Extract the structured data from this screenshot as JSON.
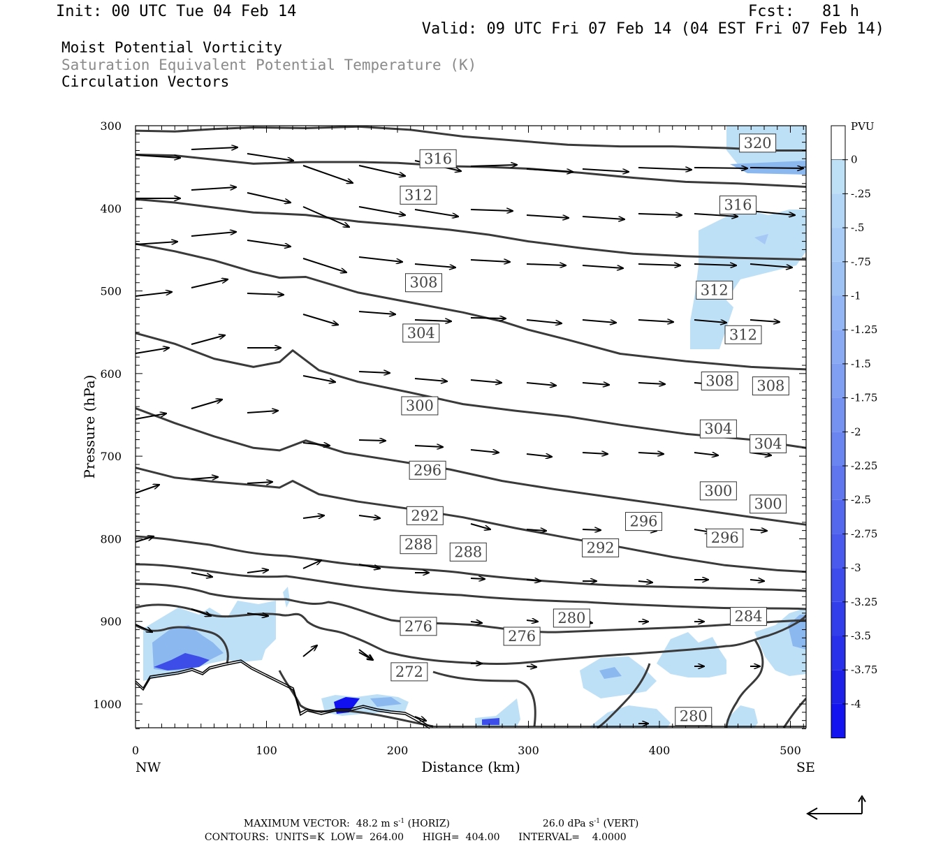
{
  "header": {
    "init": "Init: 00 UTC Tue 04 Feb 14",
    "fcst": "Fcst:   81 h",
    "valid": "Valid: 09 UTC Fri 07 Feb 14 (04 EST Fri 07 Feb 14)"
  },
  "titles": {
    "line1": "Moist Potential Vorticity",
    "line2": "Saturation Equivalent Potential Temperature (K)",
    "line3": "Circulation Vectors"
  },
  "footer": {
    "max_vector_label": "MAXIMUM VECTOR:",
    "horiz": "48.2 m s",
    "horiz_unit": "(HORIZ)",
    "vert": "26.0 dPa s",
    "vert_unit": "(VERT)",
    "contours_units": "CONTOURS:  UNITS=K",
    "low": "LOW=  264.00",
    "high": "HIGH=  404.00",
    "interval": "INTERVAL=    4.0000"
  },
  "colors": {
    "contour": "#3a3a3a",
    "pv_light": "#bde0f7",
    "pv_mid": "#8cb8f0",
    "pv_strong": "#3d4ee8",
    "pv_deep": "#1010f0"
  },
  "chart_data": {
    "type": "cross-section",
    "xlabel": "Distance (km)",
    "ylabel": "Pressure (hPa)",
    "xlim": [
      0,
      512
    ],
    "ylim": [
      1035,
      300
    ],
    "x_ticks": [
      0,
      100,
      200,
      300,
      400,
      500
    ],
    "y_ticks": [
      300,
      400,
      500,
      600,
      700,
      800,
      900,
      1000
    ],
    "endpoints": {
      "left": "NW",
      "right": "SE"
    },
    "colorbar": {
      "unit": "PVU",
      "levels": [
        "0",
        "-.25",
        "-.5",
        "-.75",
        "-1",
        "-1.25",
        "-1.5",
        "-1.75",
        "-2",
        "-2.25",
        "-2.5",
        "-2.75",
        "-3",
        "-3.25",
        "-3.5",
        "-3.75",
        "-4"
      ],
      "colors": [
        "#ffffff",
        "#bde0f7",
        "#b3d6f7",
        "#a9ccf6",
        "#9fc2f5",
        "#95b6f4",
        "#8aaaf3",
        "#809ef2",
        "#7592f1",
        "#6a84f0",
        "#5f76ef",
        "#5468ee",
        "#495aed",
        "#3e4cec",
        "#333eeb",
        "#2830ea",
        "#1e22e9",
        "#1414f0"
      ]
    },
    "contour_labels": [
      {
        "text": "320",
        "x": 475,
        "p": 321
      },
      {
        "text": "316",
        "x": 231,
        "p": 340
      },
      {
        "text": "312",
        "x": 216,
        "p": 384
      },
      {
        "text": "316",
        "x": 460,
        "p": 396
      },
      {
        "text": "308",
        "x": 220,
        "p": 490
      },
      {
        "text": "312",
        "x": 442,
        "p": 499
      },
      {
        "text": "304",
        "x": 218,
        "p": 551
      },
      {
        "text": "312",
        "x": 464,
        "p": 553
      },
      {
        "text": "308",
        "x": 446,
        "p": 609
      },
      {
        "text": "308",
        "x": 485,
        "p": 615
      },
      {
        "text": "300",
        "x": 217,
        "p": 639
      },
      {
        "text": "304",
        "x": 445,
        "p": 667
      },
      {
        "text": "304",
        "x": 483,
        "p": 685
      },
      {
        "text": "296",
        "x": 223,
        "p": 717
      },
      {
        "text": "300",
        "x": 445,
        "p": 742
      },
      {
        "text": "300",
        "x": 483,
        "p": 758
      },
      {
        "text": "292",
        "x": 221,
        "p": 772
      },
      {
        "text": "296",
        "x": 388,
        "p": 779
      },
      {
        "text": "296",
        "x": 450,
        "p": 799
      },
      {
        "text": "288",
        "x": 216,
        "p": 807
      },
      {
        "text": "288",
        "x": 254,
        "p": 816
      },
      {
        "text": "292",
        "x": 355,
        "p": 811
      },
      {
        "text": "280",
        "x": 333,
        "p": 896
      },
      {
        "text": "284",
        "x": 468,
        "p": 894
      },
      {
        "text": "276",
        "x": 216,
        "p": 906
      },
      {
        "text": "276",
        "x": 295,
        "p": 918
      },
      {
        "text": "272",
        "x": 209,
        "p": 961
      },
      {
        "text": "280",
        "x": 426,
        "p": 1015
      }
    ],
    "contour_lines": [
      {
        "x": [
          0,
          30,
          60,
          90,
          130,
          170,
          210,
          250,
          290,
          330,
          370,
          410,
          450,
          490,
          512
        ],
        "p": [
          306,
          307,
          304,
          302,
          303,
          301,
          305,
          313,
          318,
          323,
          325,
          325,
          327,
          330,
          330
        ]
      },
      {
        "x": [
          0,
          30,
          60,
          90,
          130,
          170,
          200,
          240,
          270,
          300,
          340,
          380,
          420,
          460,
          512
        ],
        "p": [
          335,
          336,
          341,
          346,
          344,
          344,
          345,
          349,
          350,
          352,
          357,
          363,
          368,
          370,
          374
        ]
      },
      {
        "x": [
          0,
          30,
          60,
          90,
          130,
          170,
          200,
          240,
          270,
          300,
          340,
          380,
          420,
          460,
          512
        ],
        "p": [
          389,
          393,
          399,
          405,
          408,
          416,
          420,
          426,
          432,
          440,
          448,
          455,
          458,
          460,
          462
        ]
      },
      {
        "x": [
          0,
          30,
          60,
          90,
          110,
          130,
          170,
          210,
          250,
          280,
          300,
          330,
          370,
          420,
          470,
          512
        ],
        "p": [
          443,
          452,
          463,
          477,
          484,
          483,
          502,
          514,
          526,
          537,
          547,
          559,
          576,
          585,
          592,
          595
        ]
      },
      {
        "x": [
          0,
          30,
          60,
          90,
          110,
          120,
          140,
          170,
          210,
          250,
          290,
          330,
          370,
          420,
          470,
          512
        ],
        "p": [
          551,
          564,
          582,
          592,
          586,
          572,
          596,
          610,
          623,
          637,
          645,
          652,
          662,
          673,
          680,
          690
        ]
      },
      {
        "x": [
          0,
          30,
          60,
          90,
          110,
          130,
          160,
          200,
          240,
          280,
          320,
          360,
          400,
          440,
          480,
          512
        ],
        "p": [
          642,
          660,
          676,
          690,
          693,
          681,
          696,
          706,
          716,
          730,
          740,
          749,
          758,
          767,
          776,
          783
        ]
      },
      {
        "x": [
          0,
          30,
          60,
          90,
          110,
          120,
          140,
          170,
          210,
          250,
          290,
          330,
          370,
          410,
          450,
          490,
          512
        ],
        "p": [
          714,
          726,
          731,
          735,
          738,
          730,
          746,
          755,
          764,
          774,
          787,
          799,
          810,
          822,
          832,
          838,
          840
        ]
      }
    ]
  }
}
